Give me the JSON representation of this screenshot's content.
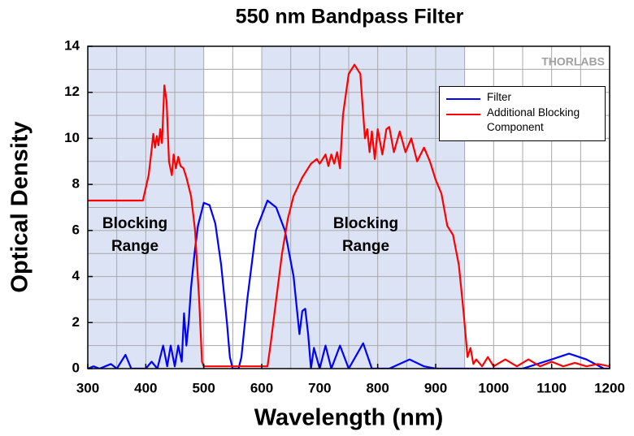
{
  "chart_data": {
    "type": "line",
    "title": "550 nm Bandpass Filter",
    "x_label": "Wavelength (nm)",
    "y_label": "Optical Density",
    "watermark": "THORLABS",
    "xlim": [
      300,
      1200
    ],
    "ylim": [
      0,
      14
    ],
    "xticks": [
      300,
      400,
      500,
      600,
      700,
      800,
      900,
      1000,
      1100,
      1200
    ],
    "yticks": [
      0,
      2,
      4,
      6,
      8,
      10,
      12,
      14
    ],
    "x_minor_ticks": [
      350,
      450,
      550,
      650,
      750,
      850,
      950,
      1050,
      1150
    ],
    "y_minor_ticks": [
      1,
      3,
      5,
      7,
      9,
      11,
      13
    ],
    "grid": true,
    "legend": "upper right",
    "shaded_regions": [
      {
        "x0": 300,
        "x1": 500,
        "color": "#dce3f5"
      },
      {
        "x0": 600,
        "x1": 950,
        "color": "#dce3f5"
      }
    ],
    "annotations": [
      "Blocking Range",
      "Blocking Range"
    ],
    "series": [
      {
        "name": "Filter",
        "color": "#0000ff",
        "x": [
          300,
          310,
          320,
          330,
          340,
          350,
          365,
          375,
          400,
          410,
          420,
          430,
          437,
          443,
          450,
          456,
          462,
          466,
          470,
          474,
          478,
          484,
          490,
          500,
          510,
          520,
          530,
          540,
          545,
          550,
          560,
          565,
          575,
          590,
          610,
          625,
          640,
          655,
          665,
          670,
          675,
          680,
          685,
          690,
          700,
          710,
          720,
          735,
          750,
          775,
          790,
          820,
          855,
          880,
          900,
          950,
          1000,
          1050,
          1100,
          1130,
          1160,
          1190,
          1200
        ],
        "values": [
          0,
          0.1,
          0,
          0.1,
          0.2,
          0,
          0.6,
          0,
          0,
          0.3,
          0,
          1.0,
          0.1,
          1.0,
          0.1,
          1.0,
          0.3,
          2.4,
          1.0,
          2.0,
          3.5,
          5.0,
          6.2,
          7.2,
          7.1,
          6.3,
          4.5,
          2.0,
          0.5,
          0,
          0,
          0.5,
          3.0,
          6.0,
          7.3,
          7.0,
          6.0,
          4.0,
          1.5,
          2.5,
          2.6,
          1.5,
          0,
          0.9,
          0,
          1.0,
          0,
          1.0,
          0,
          1.1,
          0,
          0,
          0.4,
          0.1,
          0,
          0,
          0,
          0,
          0.4,
          0.65,
          0.4,
          0,
          0
        ]
      },
      {
        "name": "Additional Blocking Component",
        "color": "#ff0000",
        "x": [
          300,
          395,
          405,
          410,
          413,
          416,
          419,
          422,
          425,
          428,
          432,
          436,
          440,
          445,
          448,
          452,
          456,
          460,
          465,
          470,
          478,
          485,
          492,
          497,
          500,
          550,
          610,
          615,
          625,
          635,
          645,
          655,
          670,
          685,
          695,
          700,
          710,
          715,
          720,
          725,
          730,
          735,
          740,
          750,
          760,
          770,
          778,
          782,
          786,
          790,
          795,
          800,
          808,
          815,
          820,
          828,
          838,
          848,
          858,
          868,
          880,
          890,
          900,
          910,
          920,
          930,
          940,
          948,
          955,
          960,
          965,
          970,
          980,
          990,
          1000,
          1020,
          1040,
          1060,
          1080,
          1100,
          1120,
          1140,
          1160,
          1180,
          1200
        ],
        "values": [
          7.3,
          7.3,
          8.4,
          9.5,
          10.2,
          9.6,
          10.1,
          9.7,
          10.4,
          9.8,
          12.3,
          11.6,
          9.0,
          8.4,
          9.3,
          8.7,
          9.2,
          8.8,
          8.7,
          8.3,
          7.5,
          6.0,
          3.0,
          0.3,
          0.1,
          0.1,
          0.1,
          1.0,
          3.0,
          5.0,
          6.5,
          7.5,
          8.3,
          8.9,
          9.1,
          8.9,
          9.3,
          8.8,
          9.3,
          8.9,
          9.4,
          8.7,
          11.0,
          12.8,
          13.2,
          12.8,
          10.0,
          10.4,
          9.4,
          10.3,
          9.1,
          10.4,
          9.3,
          10.4,
          10.5,
          9.4,
          10.3,
          9.4,
          10.0,
          9.0,
          9.6,
          9.0,
          8.2,
          7.6,
          6.2,
          5.8,
          4.5,
          2.5,
          0.5,
          0.9,
          0.2,
          0.4,
          0.1,
          0.5,
          0.1,
          0.4,
          0.1,
          0.4,
          0.1,
          0.3,
          0.1,
          0.25,
          0.1,
          0.2,
          0.1
        ]
      }
    ]
  }
}
